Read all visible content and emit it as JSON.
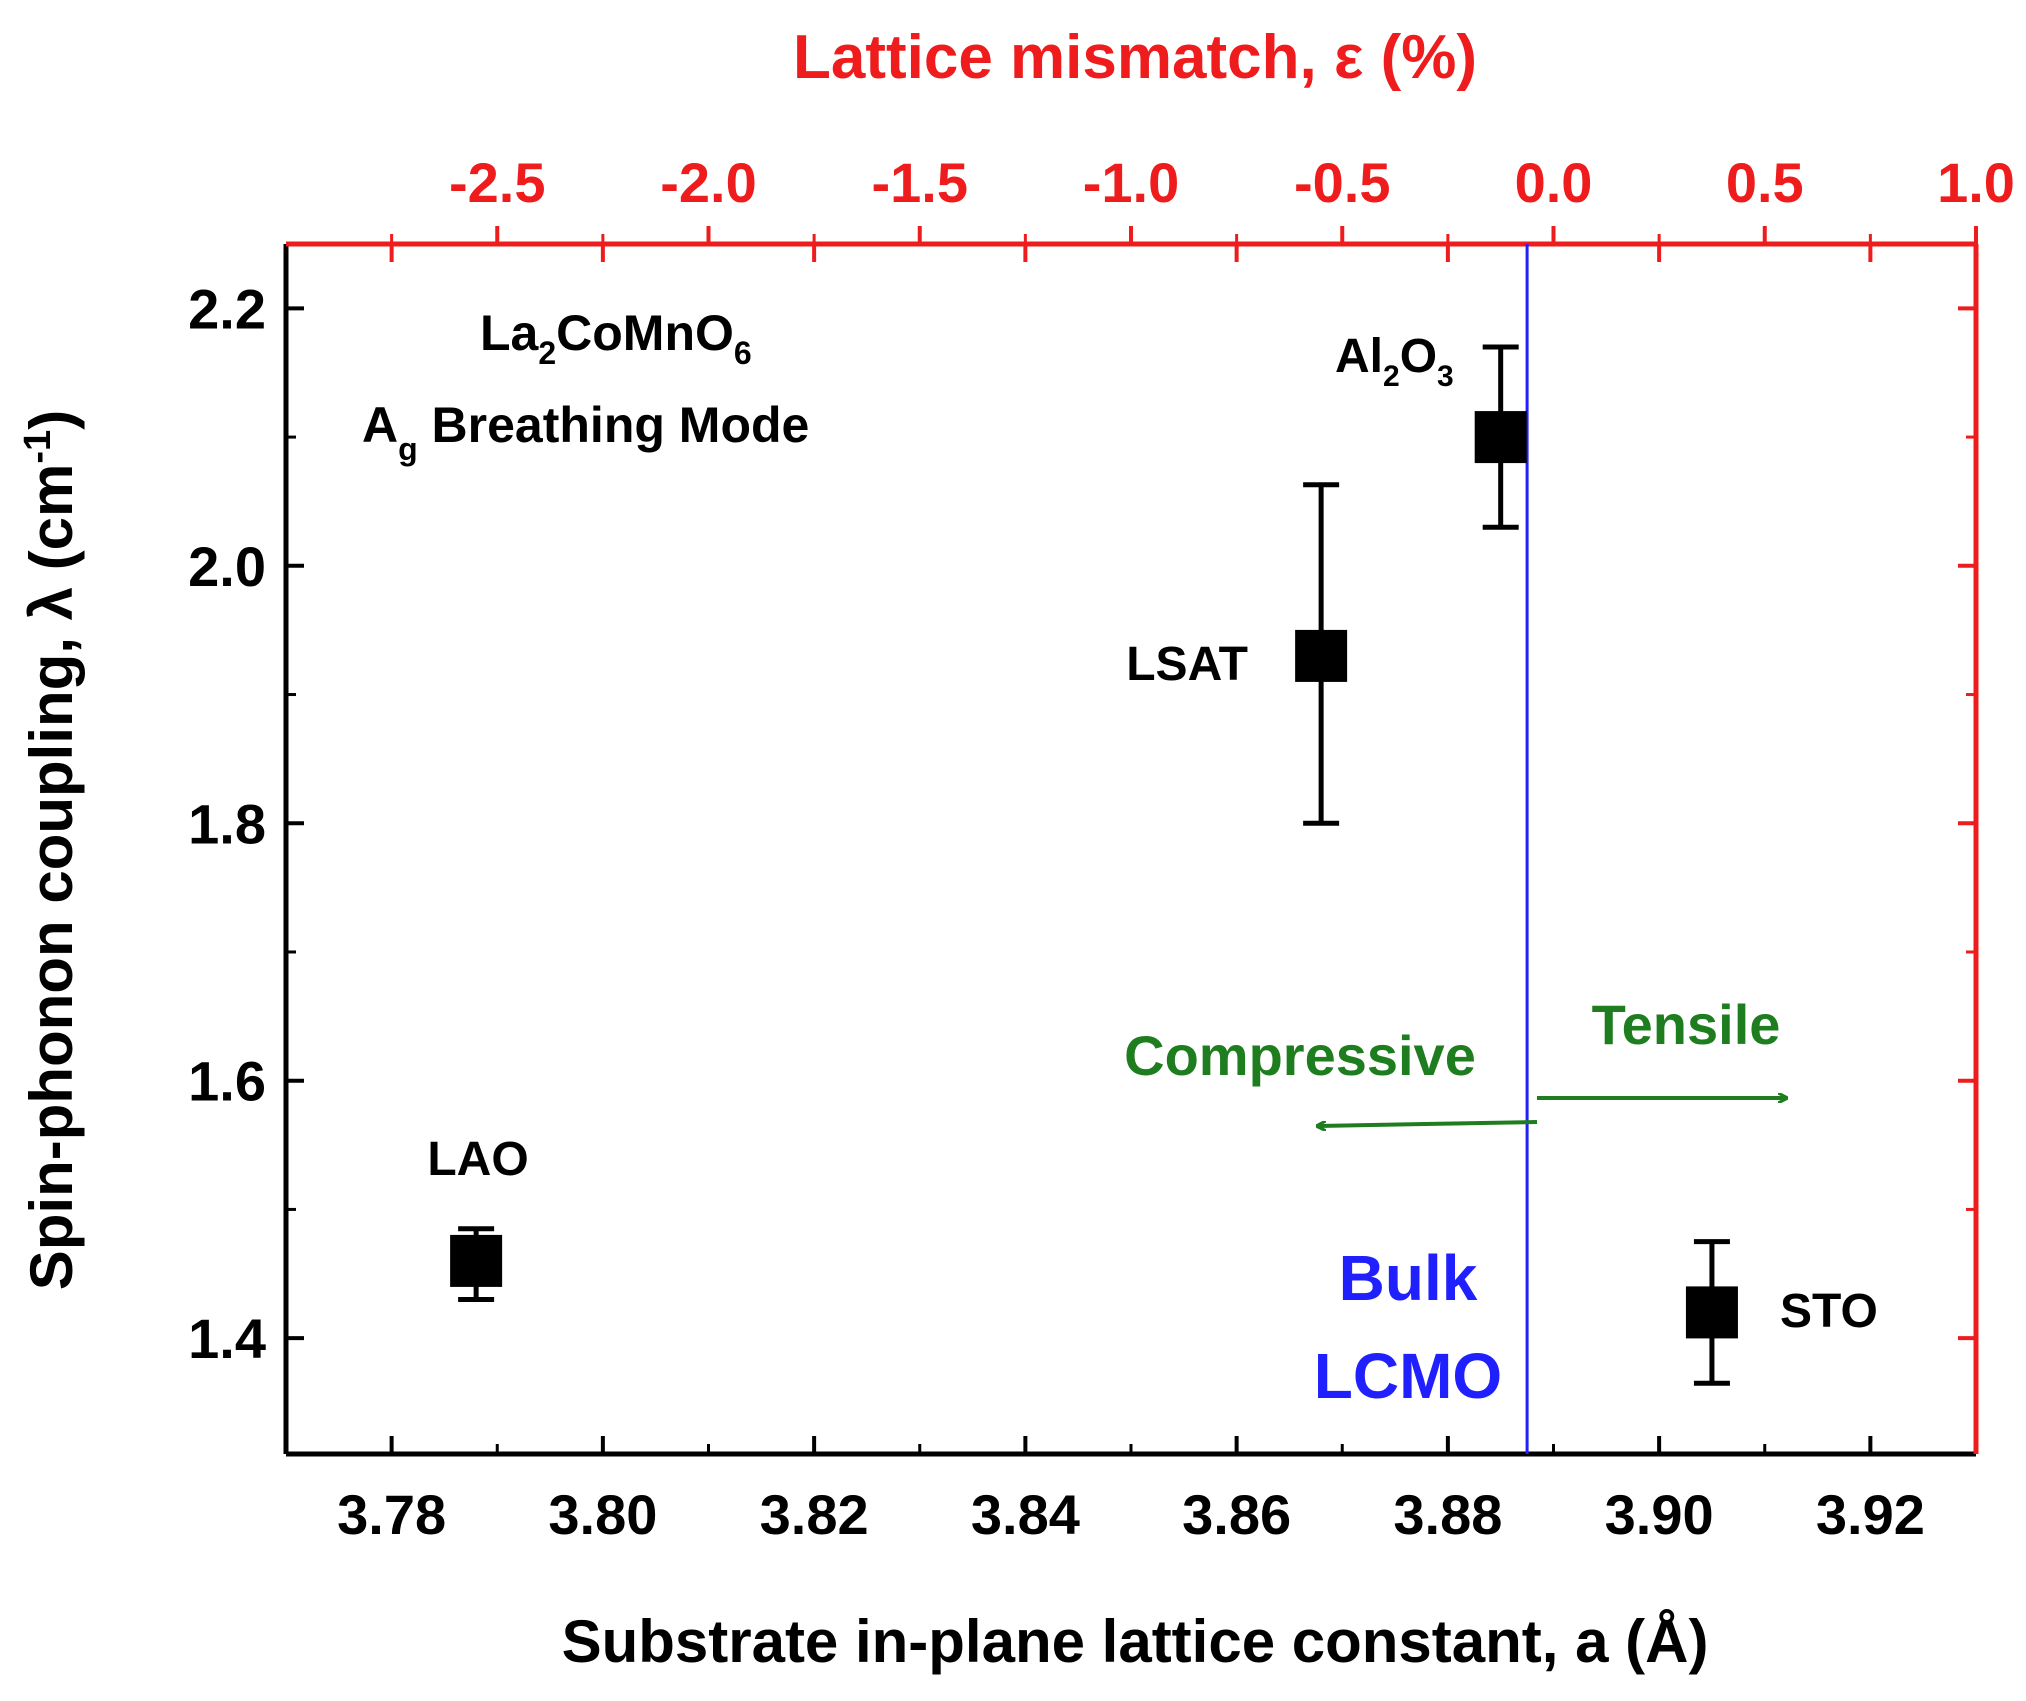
{
  "chart_data": {
    "type": "scatter",
    "xlabel": "Substrate in-plane lattice constant, a (Å)",
    "ylabel": "Spin-phonon coupling, λ (cm",
    "ylabel_sup": "-1",
    "ylabel_close": ")",
    "top_xlabel": "Lattice mismatch, ε (%)",
    "xlim": [
      3.77,
      3.93
    ],
    "ylim": [
      1.31,
      2.25
    ],
    "top_xlim": [
      -3.0,
      1.0
    ],
    "x_ticks": [
      3.78,
      3.8,
      3.82,
      3.84,
      3.86,
      3.88,
      3.9,
      3.92
    ],
    "x_tick_labels": [
      "3.78",
      "3.80",
      "3.82",
      "3.84",
      "3.86",
      "3.88",
      "3.90",
      "3.92"
    ],
    "y_ticks": [
      1.4,
      1.6,
      1.8,
      2.0,
      2.2
    ],
    "y_tick_labels": [
      "1.4",
      "1.6",
      "1.8",
      "2.0",
      "2.2"
    ],
    "top_ticks": [
      -2.5,
      -2.0,
      -1.5,
      -1.0,
      -0.5,
      0.0,
      0.5,
      1.0
    ],
    "top_tick_labels": [
      "-2.5",
      "-2.0",
      "-1.5",
      "-1.0",
      "-0.5",
      "0.0",
      "0.5",
      "1.0"
    ],
    "points": [
      {
        "label": "LAO",
        "x": 3.788,
        "y": 1.46,
        "yerr_low": 1.43,
        "yerr_high": 1.485
      },
      {
        "label": "LSAT",
        "x": 3.868,
        "y": 1.93,
        "yerr_low": 1.8,
        "yerr_high": 2.063
      },
      {
        "label": "Al",
        "label_sub1": "2",
        "label_mid": "O",
        "label_sub2": "3",
        "x": 3.885,
        "y": 2.1,
        "yerr_low": 2.03,
        "yerr_high": 2.17
      },
      {
        "label": "STO",
        "x": 3.905,
        "y": 1.42,
        "yerr_low": 1.365,
        "yerr_high": 1.475
      }
    ],
    "bulk_line_x": 3.8875,
    "bulk_label_1": "Bulk",
    "bulk_label_2": "LCMO",
    "compound_parts": [
      "La",
      "2",
      "CoMnO",
      "6"
    ],
    "mode_parts": [
      "A",
      "g",
      " Breathing Mode"
    ],
    "compressive_label": "Compressive",
    "tensile_label": "Tensile",
    "colors": {
      "axis": "#000000",
      "top_axis": "#ee1c1c",
      "bulk": "#2020ff",
      "strain": "#1e7d1e",
      "marker": "#000000"
    }
  }
}
